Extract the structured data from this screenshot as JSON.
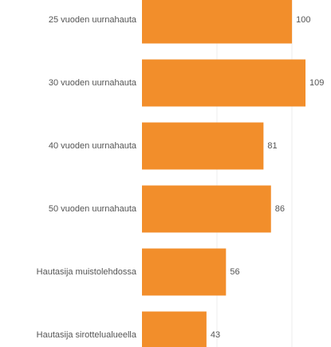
{
  "chart_data": {
    "type": "barh",
    "categories": [
      "25 vuoden uurnahauta",
      "30 vuoden uurnahauta",
      "40 vuoden uurnahauta",
      "50 vuoden uurnahauta",
      "Hautasija muistolehdossa",
      "Hautasija sirottelualueella"
    ],
    "values": [
      100,
      109,
      81,
      86,
      56,
      43
    ],
    "color": "#f28e2b",
    "xlim": [
      0,
      126
    ]
  }
}
